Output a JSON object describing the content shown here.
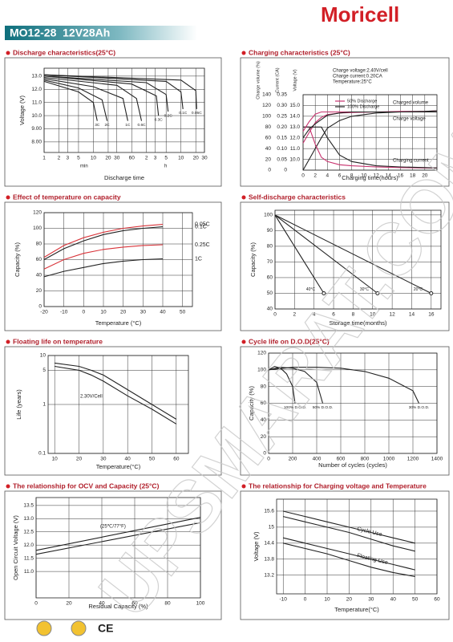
{
  "header": {
    "brand": "Moricell",
    "model": "MO12-28  12V28Ah"
  },
  "watermark": "UPSMARAT.COM",
  "footer": {
    "mark": "CE"
  },
  "chart_data": [
    {
      "type": "line",
      "title": "Discharge characteristics(25°C)",
      "ylabel": "Voltage (V)",
      "xlabel": "Discharge time",
      "annotations": [
        "min",
        "h"
      ],
      "xscale": "log",
      "grid": true,
      "xlim": [
        1,
        1800
      ],
      "ylim": [
        7.2,
        13.6
      ],
      "xticks": [
        1,
        2,
        3,
        5,
        10,
        20,
        30,
        60,
        {
          "value": 120,
          "label": "2"
        },
        {
          "value": 180,
          "label": "3"
        },
        {
          "value": 300,
          "label": "5"
        },
        {
          "value": 600,
          "label": "10"
        },
        {
          "value": 1200,
          "label": "20"
        },
        {
          "value": 1800,
          "label": "30"
        }
      ],
      "yticks": [
        {
          "value": 8,
          "label": "8.00"
        },
        {
          "value": 9,
          "label": "9.00"
        },
        {
          "value": 10,
          "label": "10.0"
        },
        {
          "value": 11,
          "label": "11.0"
        },
        {
          "value": 12,
          "label": "12.0"
        },
        {
          "value": 13,
          "label": "13.0"
        }
      ],
      "series": [
        {
          "name": "3C",
          "color": "#222",
          "x": [
            1,
            5,
            10,
            12
          ],
          "values": [
            12.6,
            11.8,
            11,
            9.6
          ]
        },
        {
          "name": "2C",
          "color": "#222",
          "x": [
            1,
            5,
            15,
            19
          ],
          "values": [
            12.7,
            12.1,
            11.2,
            9.6
          ]
        },
        {
          "name": "1C",
          "color": "#222",
          "x": [
            1,
            10,
            40,
            50
          ],
          "values": [
            12.8,
            12.2,
            11.3,
            9.6
          ]
        },
        {
          "name": "0.6C",
          "color": "#222",
          "x": [
            1,
            30,
            75,
            95
          ],
          "values": [
            12.9,
            12.3,
            11.3,
            9.6
          ]
        },
        {
          "name": "0.3C",
          "color": "#222",
          "x": [
            1,
            60,
            190,
            210
          ],
          "values": [
            13.0,
            12.4,
            11.5,
            10.0
          ]
        },
        {
          "name": "0.2C",
          "color": "#222",
          "x": [
            1,
            120,
            300,
            330
          ],
          "values": [
            13.0,
            12.5,
            11.6,
            10.3
          ]
        },
        {
          "name": "0.1C",
          "color": "#222",
          "x": [
            1,
            300,
            600,
            660
          ],
          "values": [
            13.1,
            12.6,
            11.8,
            10.5
          ]
        },
        {
          "name": "0.05C",
          "color": "#222",
          "x": [
            1,
            600,
            1200,
            1250
          ],
          "values": [
            13.1,
            12.7,
            11.9,
            10.5
          ]
        }
      ]
    },
    {
      "type": "line",
      "title": "Charging characteristics (25°C)",
      "ylabel": "Charge volume (%)",
      "y2label": "Current (CA)",
      "y3label": "Voltage (V)",
      "xlabel": "Charging time(hours)",
      "grid": true,
      "annotations": [
        "Charge voltage:2.40V/cell",
        "Charge current:0.20CA",
        "Temperature:25°C",
        "Charged volume",
        "Charge voltage",
        "Charging current"
      ],
      "x": [
        0,
        1,
        2,
        3,
        4,
        6,
        8,
        12,
        16,
        20,
        22
      ],
      "xlim": [
        0,
        22
      ],
      "xticks": [
        0,
        2,
        4,
        6,
        8,
        10,
        12,
        14,
        16,
        18,
        20
      ],
      "ylim": [
        0,
        140
      ],
      "yticks": [
        0,
        20,
        40,
        60,
        80,
        100,
        120,
        140
      ],
      "y2lim": [
        0,
        0.35
      ],
      "y2ticks": [
        0,
        0.05,
        {
          "value": 0.1,
          "label": "0.10"
        },
        0.15,
        {
          "value": 0.2,
          "label": "0.20"
        },
        0.25,
        {
          "value": 0.3,
          "label": "0.30"
        },
        0.35
      ],
      "y3lim": [
        9,
        16
      ],
      "y3ticks": [
        {
          "value": 10,
          "label": "10.0"
        },
        {
          "value": 11,
          "label": "11.0"
        },
        {
          "value": 12,
          "label": "12.0"
        },
        {
          "value": 13,
          "label": "13.0"
        },
        {
          "value": 14,
          "label": "14.0"
        },
        {
          "value": 15,
          "label": "15.0"
        }
      ],
      "series": [
        {
          "name": "50% Discharge",
          "color": "#c8326e",
          "values": [
            50,
            70,
            88,
            98,
            103,
            106,
            107,
            108,
            109,
            109,
            110
          ]
        },
        {
          "name": "100% Discharge",
          "color": "#222",
          "values": [
            0,
            20,
            40,
            60,
            78,
            92,
            100,
            106,
            108,
            109,
            110
          ]
        },
        {
          "color": "#c8326e",
          "axis": "y2",
          "values": [
            0.2,
            0.2,
            0.12,
            0.06,
            0.04,
            0.025,
            0.02,
            0.015,
            0.012,
            0.01,
            0.01
          ]
        },
        {
          "color": "#222",
          "axis": "y2",
          "values": [
            0.2,
            0.2,
            0.2,
            0.2,
            0.15,
            0.07,
            0.04,
            0.02,
            0.015,
            0.012,
            0.01
          ]
        },
        {
          "color": "#c8326e",
          "axis": "y3",
          "values": [
            12.6,
            13.5,
            14.2,
            14.4,
            14.4,
            14.4,
            14.4,
            14.4,
            14.4,
            14.4,
            14.4
          ]
        },
        {
          "color": "#222",
          "axis": "y3",
          "values": [
            12.0,
            12.8,
            13.3,
            13.7,
            14.1,
            14.3,
            14.4,
            14.4,
            14.4,
            14.4,
            14.4
          ]
        }
      ]
    },
    {
      "type": "line",
      "title": "Effect of temperature on capacity",
      "ylabel": "Capacity (%)",
      "xlabel": "Temperature (°C)",
      "grid": true,
      "x": [
        -20,
        -10,
        0,
        10,
        20,
        30,
        40
      ],
      "xlim": [
        -20,
        55
      ],
      "xticks": [
        -20,
        -10,
        0,
        10,
        20,
        30,
        40,
        50
      ],
      "ylim": [
        0,
        120
      ],
      "yticks": [
        0,
        20,
        40,
        60,
        80,
        100,
        120
      ],
      "series": [
        {
          "name": "0.05C",
          "color": "#d9343a",
          "values": [
            63,
            78,
            88,
            95,
            100,
            103,
            105
          ]
        },
        {
          "name": "0.1C",
          "color": "#222",
          "values": [
            60,
            74,
            84,
            92,
            97,
            100,
            102
          ]
        },
        {
          "name": "0.25C",
          "color": "#d9343a",
          "values": [
            48,
            60,
            68,
            73,
            76,
            78,
            79
          ]
        },
        {
          "name": "1C",
          "color": "#222",
          "values": [
            38,
            45,
            50,
            55,
            58,
            60,
            61
          ]
        }
      ]
    },
    {
      "type": "line",
      "title": "Self-discharge characteristics",
      "ylabel": "Capacity (%)",
      "xlabel": "Storage time(months)",
      "grid": true,
      "xlim": [
        0,
        17
      ],
      "xticks": [
        0,
        2,
        4,
        6,
        8,
        10,
        12,
        14,
        16
      ],
      "ylim": [
        40,
        103
      ],
      "yticks": [
        40,
        50,
        60,
        70,
        80,
        90,
        100
      ],
      "series": [
        {
          "name": "40°C",
          "color": "#222",
          "x": [
            0,
            5
          ],
          "values": [
            100,
            50
          ]
        },
        {
          "name": "30°C",
          "color": "#222",
          "x": [
            0,
            10.5
          ],
          "values": [
            100,
            50
          ]
        },
        {
          "name": "20°C",
          "color": "#222",
          "x": [
            0,
            16
          ],
          "values": [
            100,
            50
          ]
        }
      ]
    },
    {
      "type": "line",
      "title": "Floating life on temperature",
      "ylabel": "Life (years)",
      "xlabel": "Temperature(°C)",
      "yscale": "log",
      "grid": true,
      "annotations": [
        "2.30V/Cell"
      ],
      "x": [
        10,
        20,
        25,
        30,
        40,
        50,
        60
      ],
      "xlim": [
        7.3,
        65
      ],
      "xticks": [
        10,
        20,
        30,
        40,
        50,
        60
      ],
      "ylim": [
        0.1,
        10
      ],
      "yticks": [
        0.1,
        1,
        5,
        10
      ],
      "series": [
        {
          "color": "#222",
          "values": [
            7,
            6,
            5,
            4,
            2,
            1,
            0.5
          ]
        },
        {
          "color": "#222",
          "values": [
            6,
            5,
            4,
            3,
            1.5,
            0.8,
            0.4
          ]
        }
      ]
    },
    {
      "type": "line",
      "title": "Cycle life on D.O.D(25°C)",
      "ylabel": "Capacity (%)",
      "xlabel": "Number of cycles (cycles)",
      "grid": true,
      "xlim": [
        0,
        1400
      ],
      "xticks": [
        0,
        200,
        400,
        600,
        800,
        1000,
        1200,
        1400
      ],
      "ylim": [
        0,
        120
      ],
      "yticks": [
        0,
        20,
        40,
        60,
        80,
        100,
        120
      ],
      "series": [
        {
          "name": "100% D.O.D.",
          "color": "#222",
          "x": [
            0,
            50,
            100,
            150,
            200,
            220
          ],
          "values": [
            100,
            104,
            102,
            95,
            80,
            60
          ]
        },
        {
          "name": "50% D.O.D.",
          "color": "#222",
          "x": [
            0,
            100,
            200,
            300,
            400,
            450
          ],
          "values": [
            100,
            103,
            102,
            98,
            85,
            60
          ]
        },
        {
          "name": "30% D.O.D.",
          "color": "#222",
          "x": [
            0,
            200,
            400,
            600,
            800,
            1000,
            1200,
            1250
          ],
          "values": [
            100,
            103,
            103,
            102,
            98,
            90,
            75,
            60
          ]
        }
      ]
    },
    {
      "type": "line",
      "title": "The relationship  for OCV and Capacity (25°C)",
      "ylabel": "Open Circuit Voltage (V)",
      "xlabel": "Residual Capacity (%)",
      "grid": true,
      "annotations": [
        "(25℃/77°F)"
      ],
      "x": [
        0,
        100
      ],
      "xlim": [
        0,
        100
      ],
      "xticks": [
        0,
        20,
        40,
        60,
        80,
        100
      ],
      "ylim": [
        10,
        13.8
      ],
      "yticks": [
        {
          "value": 11,
          "label": "11.0"
        },
        {
          "value": 11.5,
          "label": "11.5"
        },
        {
          "value": 12,
          "label": "12.0"
        },
        {
          "value": 12.5,
          "label": "12.5"
        },
        {
          "value": 13,
          "label": "13.0"
        },
        {
          "value": 13.5,
          "label": "13.5"
        }
      ],
      "series": [
        {
          "color": "#222",
          "values": [
            11.8,
            13.05
          ]
        },
        {
          "color": "#222",
          "values": [
            11.65,
            12.85
          ]
        }
      ]
    },
    {
      "type": "line",
      "title": "The relationship for Charging voltage and Temperature",
      "ylabel": "Voltage (V)",
      "xlabel": "Temperature(°C)",
      "grid": true,
      "x": [
        -10,
        0,
        10,
        20,
        30,
        40,
        50
      ],
      "xlim": [
        -13,
        60
      ],
      "xticks": [
        -10,
        0,
        10,
        20,
        30,
        40,
        50,
        60
      ],
      "ylim": [
        12.5,
        16.05
      ],
      "yticks": [
        13.2,
        13.8,
        14.4,
        15,
        15.6
      ],
      "series": [
        {
          "name": "Cycle Use",
          "color": "#222",
          "values": [
            15.6,
            15.4,
            15.2,
            15.0,
            14.8,
            14.6,
            14.4
          ]
        },
        {
          "color": "#222",
          "values": [
            15.4,
            15.2,
            15.0,
            14.8,
            14.55,
            14.3,
            14.1
          ]
        },
        {
          "name": "Floating Use",
          "color": "#222",
          "values": [
            14.6,
            14.4,
            14.2,
            14.0,
            13.8,
            13.6,
            13.4
          ]
        },
        {
          "color": "#222",
          "values": [
            14.4,
            14.2,
            14.0,
            13.75,
            13.5,
            13.3,
            13.15
          ]
        }
      ]
    }
  ]
}
